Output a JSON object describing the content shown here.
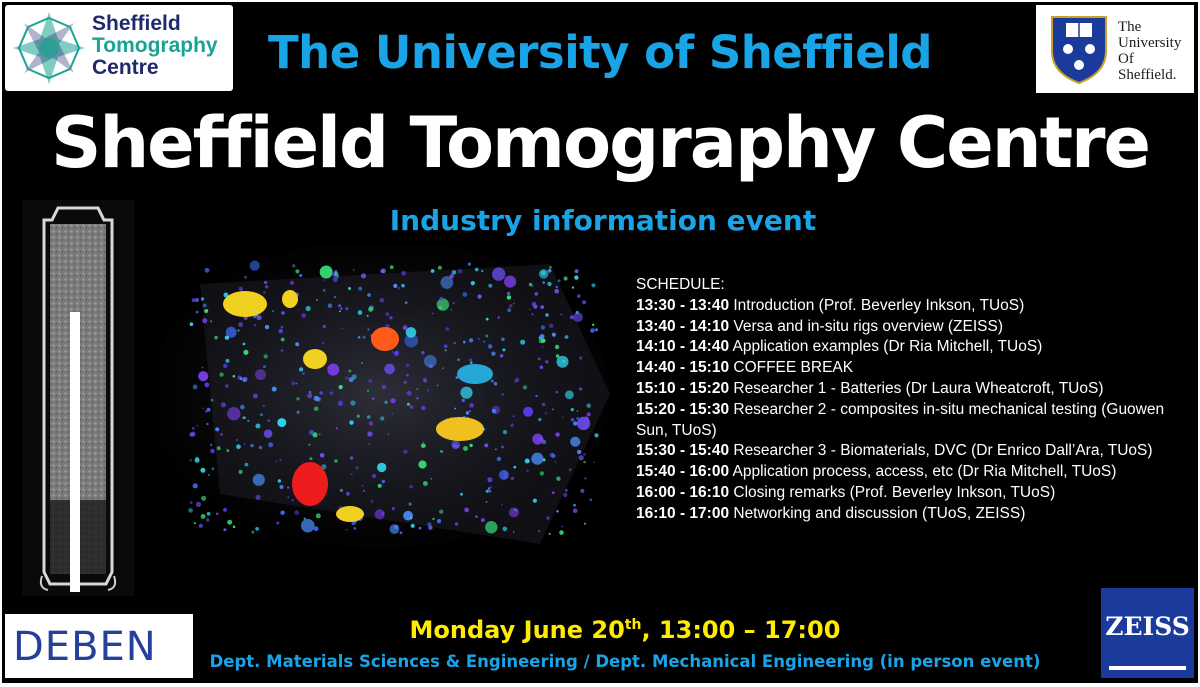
{
  "logos": {
    "centre": {
      "lines": [
        "Sheffield",
        "Tomography",
        "Centre"
      ]
    },
    "university": {
      "lines": [
        "The",
        "University",
        "Of",
        "Sheffield."
      ]
    },
    "deben": {
      "word": "DEBEN"
    },
    "zeiss": {
      "word": "ZEISS"
    }
  },
  "header": {
    "university": "The University of Sheffield",
    "title": "Sheffield Tomography Centre",
    "subtitle": "Industry information event"
  },
  "schedule": {
    "heading": "SCHEDULE:",
    "items": [
      {
        "time": "13:30 - 13:40",
        "text": " Introduction (Prof. Beverley Inkson, TUoS)"
      },
      {
        "time": "13:40 - 14:10",
        "text": " Versa and in-situ rigs overview (ZEISS)"
      },
      {
        "time": "14:10 - 14:40",
        "text": " Application examples (Dr Ria Mitchell, TUoS)"
      },
      {
        "time": "14:40 - 15:10",
        "text": " COFFEE BREAK"
      },
      {
        "time": "15:10 - 15:20",
        "text": " Researcher 1 - Batteries (Dr Laura Wheatcroft, TUoS)"
      },
      {
        "time": "15:20 - 15:30",
        "text": " Researcher 2 - composites in-situ mechanical testing (Guowen Sun, TUoS)"
      },
      {
        "time": "15:30 - 15:40",
        "text": " Researcher 3 - Biomaterials, DVC (Dr Enrico Dall’Ara, TUoS)"
      },
      {
        "time": "15:40 - 16:00",
        "text": " Application process, access, etc (Dr Ria Mitchell, TUoS)"
      },
      {
        "time": "16:00 - 16:10",
        "text": " Closing remarks (Prof. Beverley Inkson, TUoS)"
      },
      {
        "time": "16:10 - 17:00",
        "text": " Networking and discussion (TUoS, ZEISS)"
      }
    ]
  },
  "footer": {
    "date_main": "Monday June 20",
    "date_sup": "th",
    "date_time": ", 13:00 – 17:00",
    "department": "Dept. Materials Sciences & Engineering / Dept. Mechanical Engineering (in person event)"
  },
  "colors": {
    "accent_blue": "#1aa4e8",
    "date_yellow": "#ffeb00",
    "background": "#000000",
    "title_white": "#ffffff"
  }
}
